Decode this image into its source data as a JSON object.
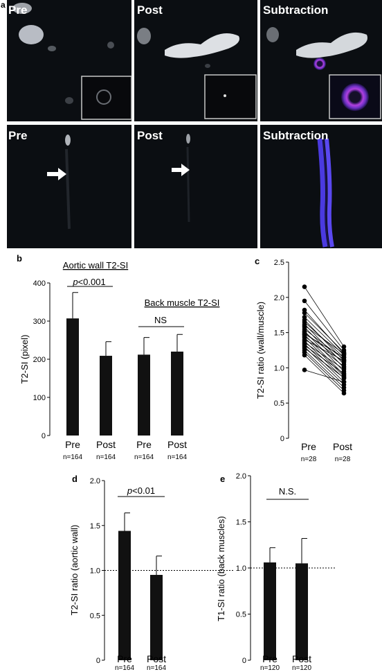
{
  "panel_a": {
    "letter": "a",
    "top_row": [
      "Pre",
      "Post",
      "Subtraction"
    ],
    "bottom_row": [
      "Pre",
      "Post",
      "Subtraction"
    ]
  },
  "chart_data": [
    {
      "panel": "b",
      "type": "bar",
      "ylabel": "T2-SI (pixel)",
      "ylim": [
        0,
        400
      ],
      "yticks": [
        "0",
        "100",
        "200",
        "300",
        "400"
      ],
      "groups": [
        {
          "title": "Aortic wall T2-SI",
          "annotation": "p<0.001",
          "bars": [
            {
              "label": "Pre",
              "n": "n=164",
              "value": 307,
              "err": 68
            },
            {
              "label": "Post",
              "n": "n=164",
              "value": 209,
              "err": 37
            }
          ]
        },
        {
          "title": "Back muscle T2-SI",
          "annotation": "NS",
          "bars": [
            {
              "label": "Pre",
              "n": "n=164",
              "value": 212,
              "err": 45
            },
            {
              "label": "Post",
              "n": "n=164",
              "value": 220,
              "err": 45
            }
          ]
        }
      ]
    },
    {
      "panel": "c",
      "type": "scatter",
      "ylabel": "T2-SI ratio (wall/muscle)",
      "ylim": [
        0,
        2.5
      ],
      "yticks": [
        "0",
        "0.5",
        "1.0",
        "1.5",
        "2.0",
        "2.5"
      ],
      "categories": [
        {
          "label": "Pre",
          "n": "n=28"
        },
        {
          "label": "Post",
          "n": "n=28"
        }
      ],
      "pairs": [
        [
          2.15,
          1.3
        ],
        [
          1.95,
          1.25
        ],
        [
          1.82,
          1.2
        ],
        [
          1.78,
          1.22
        ],
        [
          1.72,
          1.18
        ],
        [
          1.68,
          1.1
        ],
        [
          1.65,
          1.15
        ],
        [
          1.62,
          1.05
        ],
        [
          1.6,
          1.2
        ],
        [
          1.58,
          1.0
        ],
        [
          1.55,
          1.12
        ],
        [
          1.52,
          0.95
        ],
        [
          1.5,
          1.08
        ],
        [
          1.48,
          1.15
        ],
        [
          1.47,
          0.9
        ],
        [
          1.45,
          1.02
        ],
        [
          1.43,
          0.88
        ],
        [
          1.4,
          1.1
        ],
        [
          1.38,
          0.85
        ],
        [
          1.36,
          0.98
        ],
        [
          1.34,
          0.8
        ],
        [
          1.32,
          0.92
        ],
        [
          1.3,
          0.76
        ],
        [
          1.28,
          0.86
        ],
        [
          1.25,
          0.72
        ],
        [
          1.22,
          0.68
        ],
        [
          1.18,
          0.64
        ],
        [
          0.97,
          0.8
        ]
      ]
    },
    {
      "panel": "d",
      "type": "bar",
      "ylabel": "T2-SI ratio (aortic wall)",
      "ylim": [
        0,
        2.0
      ],
      "yticks": [
        "0",
        "0.5",
        "1.0",
        "1.5",
        "2.0"
      ],
      "reference_line": 1.0,
      "annotation": "p<0.01",
      "bars": [
        {
          "label": "Pre",
          "n": "n=164",
          "value": 1.44,
          "err": 0.2
        },
        {
          "label": "Post",
          "n": "n=164",
          "value": 0.95,
          "err": 0.21
        }
      ]
    },
    {
      "panel": "e",
      "type": "bar",
      "ylabel": "T1-SI ratio (back muscles)",
      "ylim": [
        0,
        2.0
      ],
      "yticks": [
        "0",
        "0.5",
        "1.0",
        "1.5",
        "2.0"
      ],
      "reference_line": 1.0,
      "annotation": "N.S.",
      "bars": [
        {
          "label": "Pre",
          "n": "n=120",
          "value": 1.06,
          "err": 0.16
        },
        {
          "label": "Post",
          "n": "n=120",
          "value": 1.05,
          "err": 0.27
        }
      ]
    }
  ]
}
